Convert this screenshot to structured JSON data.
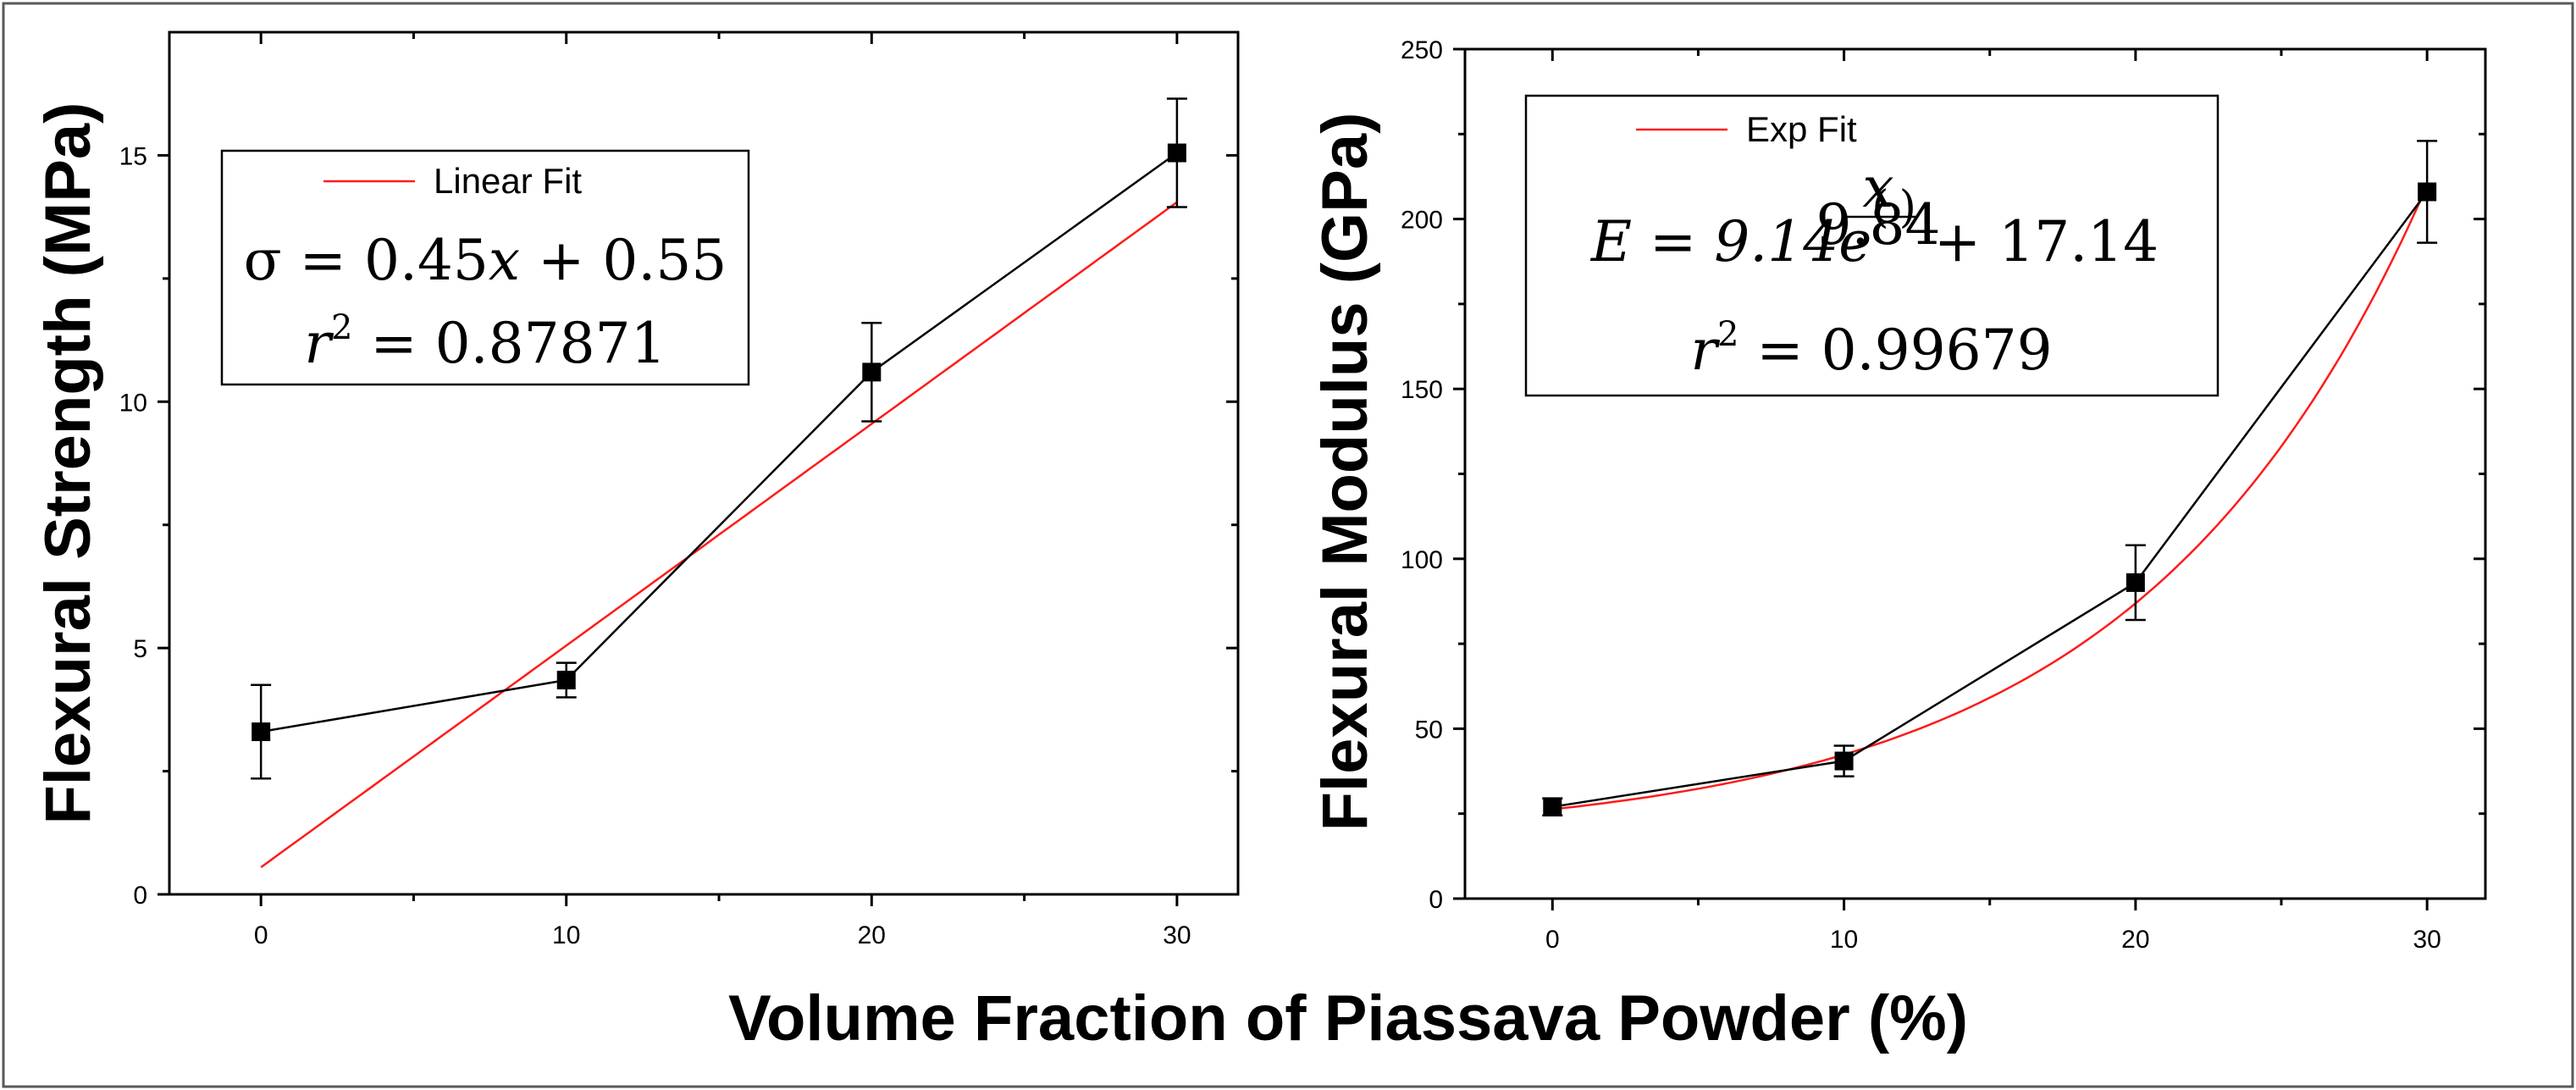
{
  "shared": {
    "xlabel": "Volume Fraction of Piassava Powder (%)",
    "colors": {
      "data": "#000000",
      "fit": "#ff1a1a"
    }
  },
  "chart_data": [
    {
      "type": "line",
      "title": "",
      "xlabel": "Volume Fraction of Piassava Powder (%)",
      "ylabel": "Flexural Strength (MPa)",
      "xlim": [
        -3,
        32
      ],
      "ylim": [
        0,
        17.5
      ],
      "xticks": [
        0,
        10,
        20,
        30
      ],
      "yticks": [
        0,
        5,
        10,
        15
      ],
      "grid": false,
      "legend": {
        "placement": "top-left",
        "entries": [
          "Linear Fit"
        ]
      },
      "equation": {
        "prefix": "σ = 0.45",
        "var": "x",
        "suffix": " + 0.55"
      },
      "r2": {
        "symbol": "r",
        "sup": "2",
        "value": " = 0.87871"
      },
      "series": [
        {
          "x": [
            0,
            10,
            20,
            30
          ],
          "y": [
            3.3,
            4.35,
            10.6,
            15.05
          ],
          "yerr": [
            0.95,
            0.35,
            1.0,
            1.1
          ]
        }
      ],
      "fit": {
        "name": "Linear Fit",
        "model": "linear",
        "slope": 0.45,
        "intercept": 0.55,
        "x_range": [
          0,
          30
        ]
      }
    },
    {
      "type": "line",
      "title": "",
      "xlabel": "Volume Fraction of Piassava Powder (%)",
      "ylabel": "Flexural Modulus (GPa)",
      "xlim": [
        -3,
        32
      ],
      "ylim": [
        0,
        250
      ],
      "xticks": [
        0,
        10,
        20,
        30
      ],
      "yticks": [
        0,
        50,
        100,
        150,
        200,
        250
      ],
      "grid": false,
      "legend": {
        "placement": "top-left",
        "entries": [
          "Exp Fit"
        ]
      },
      "equation": {
        "lhs": "E = 9.14e",
        "exp_num": "x",
        "exp_den": "9.84",
        "suffix": " + 17.14"
      },
      "r2": {
        "symbol": "r",
        "sup": "2",
        "value": " = 0.99679"
      },
      "series": [
        {
          "x": [
            0,
            10,
            20,
            30
          ],
          "y": [
            27,
            40.5,
            93,
            208
          ],
          "yerr": [
            2.5,
            4.5,
            11,
            15
          ]
        }
      ],
      "fit": {
        "name": "Exp Fit",
        "model": "exponential",
        "a": 9.14,
        "t": 9.84,
        "c": 17.14,
        "x_range": [
          0,
          30
        ]
      }
    }
  ]
}
